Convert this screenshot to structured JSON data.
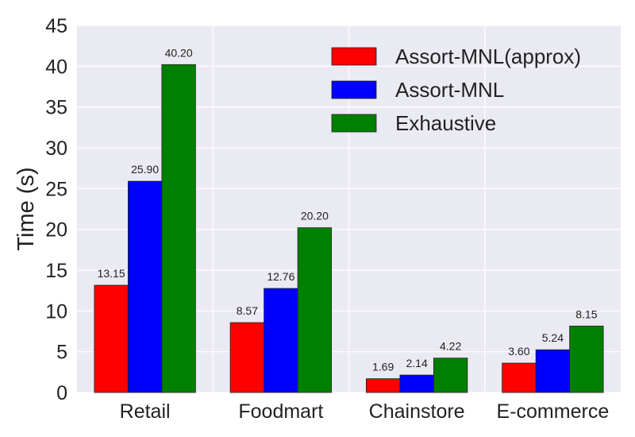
{
  "chart_data": {
    "type": "bar",
    "title": "",
    "xlabel": "",
    "ylabel": "Time (s)",
    "ylim": [
      0,
      45
    ],
    "yticks": [
      0,
      5,
      10,
      15,
      20,
      25,
      30,
      35,
      40,
      45
    ],
    "categories": [
      "Retail",
      "Foodmart",
      "Chainstore",
      "E-commerce"
    ],
    "series": [
      {
        "name": "Assort-MNL(approx)",
        "color": "#ff0000",
        "values": [
          13.15,
          8.57,
          1.69,
          3.6
        ],
        "labels": [
          "13.15",
          "8.57",
          "1.69",
          "3.60"
        ]
      },
      {
        "name": "Assort-MNL",
        "color": "#0000ff",
        "values": [
          25.9,
          12.76,
          2.14,
          5.24
        ],
        "labels": [
          "25.90",
          "12.76",
          "2.14",
          "5.24"
        ]
      },
      {
        "name": "Exhaustive",
        "color": "#008000",
        "values": [
          40.2,
          20.2,
          4.22,
          8.15
        ],
        "labels": [
          "40.20",
          "20.20",
          "4.22",
          "8.15"
        ]
      }
    ],
    "grid": true,
    "legend_position": "top-right",
    "background": "#eaeaf2"
  }
}
